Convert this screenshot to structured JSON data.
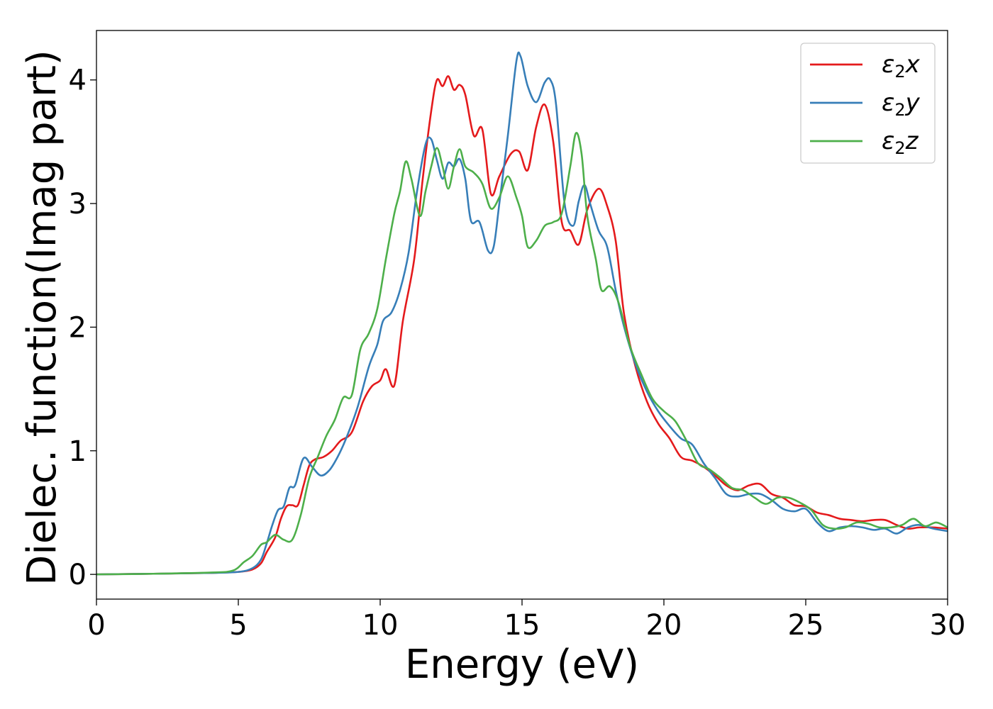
{
  "chart_data": {
    "type": "line",
    "title": "",
    "xlabel": "Energy (eV)",
    "ylabel": "Dielec. function(Imag part)",
    "xlim": [
      0,
      30
    ],
    "ylim": [
      -0.2,
      4.4
    ],
    "x_ticks": [
      "0",
      "5",
      "10",
      "15",
      "20",
      "25",
      "30"
    ],
    "y_ticks": [
      "0",
      "1",
      "2",
      "3",
      "4"
    ],
    "grid": false,
    "legend_position": "top-right",
    "series": [
      {
        "name": "ε₂x",
        "legend_base": "ε",
        "legend_sub": "2",
        "legend_suffix": "x",
        "color": "#e41a1c",
        "points": [
          [
            0,
            0
          ],
          [
            2,
            0.005
          ],
          [
            4,
            0.012
          ],
          [
            5,
            0.02
          ],
          [
            5.5,
            0.04
          ],
          [
            5.8,
            0.09
          ],
          [
            6.0,
            0.18
          ],
          [
            6.3,
            0.3
          ],
          [
            6.5,
            0.45
          ],
          [
            6.7,
            0.55
          ],
          [
            6.9,
            0.56
          ],
          [
            7.1,
            0.56
          ],
          [
            7.3,
            0.72
          ],
          [
            7.5,
            0.88
          ],
          [
            7.7,
            0.93
          ],
          [
            8.0,
            0.95
          ],
          [
            8.3,
            1.0
          ],
          [
            8.6,
            1.08
          ],
          [
            9.0,
            1.15
          ],
          [
            9.4,
            1.4
          ],
          [
            9.7,
            1.52
          ],
          [
            10.0,
            1.57
          ],
          [
            10.2,
            1.66
          ],
          [
            10.5,
            1.53
          ],
          [
            10.8,
            2.05
          ],
          [
            11.2,
            2.55
          ],
          [
            11.5,
            3.2
          ],
          [
            11.8,
            3.75
          ],
          [
            12.0,
            4.0
          ],
          [
            12.2,
            3.95
          ],
          [
            12.4,
            4.03
          ],
          [
            12.6,
            3.92
          ],
          [
            12.8,
            3.96
          ],
          [
            13.0,
            3.88
          ],
          [
            13.3,
            3.55
          ],
          [
            13.6,
            3.6
          ],
          [
            13.9,
            3.08
          ],
          [
            14.2,
            3.22
          ],
          [
            14.6,
            3.4
          ],
          [
            14.9,
            3.42
          ],
          [
            15.2,
            3.27
          ],
          [
            15.5,
            3.62
          ],
          [
            15.8,
            3.8
          ],
          [
            16.1,
            3.5
          ],
          [
            16.4,
            2.85
          ],
          [
            16.7,
            2.78
          ],
          [
            17.0,
            2.67
          ],
          [
            17.3,
            2.95
          ],
          [
            17.7,
            3.12
          ],
          [
            18.0,
            2.98
          ],
          [
            18.3,
            2.7
          ],
          [
            18.6,
            2.1
          ],
          [
            19.0,
            1.68
          ],
          [
            19.4,
            1.4
          ],
          [
            19.8,
            1.22
          ],
          [
            20.2,
            1.1
          ],
          [
            20.6,
            0.95
          ],
          [
            21.0,
            0.92
          ],
          [
            21.4,
            0.87
          ],
          [
            21.8,
            0.8
          ],
          [
            22.2,
            0.72
          ],
          [
            22.6,
            0.68
          ],
          [
            23.0,
            0.72
          ],
          [
            23.4,
            0.73
          ],
          [
            23.8,
            0.65
          ],
          [
            24.2,
            0.62
          ],
          [
            24.6,
            0.56
          ],
          [
            25.0,
            0.55
          ],
          [
            25.4,
            0.5
          ],
          [
            25.8,
            0.48
          ],
          [
            26.2,
            0.45
          ],
          [
            26.6,
            0.44
          ],
          [
            27.0,
            0.43
          ],
          [
            27.4,
            0.44
          ],
          [
            27.8,
            0.44
          ],
          [
            28.2,
            0.4
          ],
          [
            28.6,
            0.37
          ],
          [
            29.0,
            0.38
          ],
          [
            29.5,
            0.38
          ],
          [
            30.0,
            0.37
          ]
        ]
      },
      {
        "name": "ε₂y",
        "legend_base": "ε",
        "legend_sub": "2",
        "legend_suffix": "y",
        "color": "#377eb8",
        "points": [
          [
            0,
            0
          ],
          [
            2,
            0.005
          ],
          [
            4,
            0.012
          ],
          [
            5,
            0.02
          ],
          [
            5.5,
            0.05
          ],
          [
            5.8,
            0.12
          ],
          [
            6.0,
            0.25
          ],
          [
            6.2,
            0.4
          ],
          [
            6.4,
            0.52
          ],
          [
            6.6,
            0.55
          ],
          [
            6.8,
            0.7
          ],
          [
            7.0,
            0.72
          ],
          [
            7.3,
            0.94
          ],
          [
            7.6,
            0.87
          ],
          [
            7.9,
            0.8
          ],
          [
            8.2,
            0.84
          ],
          [
            8.5,
            0.95
          ],
          [
            8.8,
            1.1
          ],
          [
            9.2,
            1.35
          ],
          [
            9.6,
            1.68
          ],
          [
            9.9,
            1.86
          ],
          [
            10.1,
            2.05
          ],
          [
            10.4,
            2.12
          ],
          [
            10.7,
            2.3
          ],
          [
            11.0,
            2.6
          ],
          [
            11.3,
            3.1
          ],
          [
            11.6,
            3.48
          ],
          [
            11.8,
            3.52
          ],
          [
            12.0,
            3.35
          ],
          [
            12.2,
            3.2
          ],
          [
            12.4,
            3.33
          ],
          [
            12.6,
            3.3
          ],
          [
            12.8,
            3.36
          ],
          [
            13.0,
            3.2
          ],
          [
            13.2,
            2.86
          ],
          [
            13.5,
            2.85
          ],
          [
            13.8,
            2.62
          ],
          [
            14.0,
            2.65
          ],
          [
            14.2,
            3.0
          ],
          [
            14.5,
            3.55
          ],
          [
            14.8,
            4.15
          ],
          [
            14.95,
            4.19
          ],
          [
            15.2,
            3.95
          ],
          [
            15.5,
            3.82
          ],
          [
            15.8,
            3.98
          ],
          [
            16.0,
            4.0
          ],
          [
            16.2,
            3.8
          ],
          [
            16.5,
            3.0
          ],
          [
            16.8,
            2.82
          ],
          [
            17.0,
            3.02
          ],
          [
            17.2,
            3.15
          ],
          [
            17.4,
            3.0
          ],
          [
            17.7,
            2.78
          ],
          [
            18.0,
            2.65
          ],
          [
            18.3,
            2.3
          ],
          [
            18.6,
            2.0
          ],
          [
            19.0,
            1.7
          ],
          [
            19.4,
            1.48
          ],
          [
            19.8,
            1.32
          ],
          [
            20.2,
            1.2
          ],
          [
            20.6,
            1.1
          ],
          [
            21.0,
            1.05
          ],
          [
            21.4,
            0.9
          ],
          [
            21.8,
            0.78
          ],
          [
            22.2,
            0.65
          ],
          [
            22.6,
            0.63
          ],
          [
            23.0,
            0.65
          ],
          [
            23.4,
            0.65
          ],
          [
            23.8,
            0.6
          ],
          [
            24.2,
            0.53
          ],
          [
            24.6,
            0.51
          ],
          [
            25.0,
            0.53
          ],
          [
            25.4,
            0.42
          ],
          [
            25.8,
            0.35
          ],
          [
            26.2,
            0.38
          ],
          [
            26.6,
            0.39
          ],
          [
            27.0,
            0.38
          ],
          [
            27.4,
            0.36
          ],
          [
            27.8,
            0.37
          ],
          [
            28.2,
            0.33
          ],
          [
            28.6,
            0.38
          ],
          [
            29.0,
            0.4
          ],
          [
            29.5,
            0.37
          ],
          [
            30.0,
            0.35
          ]
        ]
      },
      {
        "name": "ε₂z",
        "legend_base": "ε",
        "legend_sub": "2",
        "legend_suffix": "z",
        "color": "#4daf4a",
        "points": [
          [
            0,
            0
          ],
          [
            2,
            0.005
          ],
          [
            4,
            0.015
          ],
          [
            4.8,
            0.03
          ],
          [
            5.2,
            0.1
          ],
          [
            5.5,
            0.15
          ],
          [
            5.8,
            0.24
          ],
          [
            6.0,
            0.26
          ],
          [
            6.3,
            0.32
          ],
          [
            6.6,
            0.28
          ],
          [
            6.9,
            0.28
          ],
          [
            7.2,
            0.48
          ],
          [
            7.5,
            0.78
          ],
          [
            7.8,
            0.95
          ],
          [
            8.1,
            1.12
          ],
          [
            8.4,
            1.25
          ],
          [
            8.7,
            1.43
          ],
          [
            9.0,
            1.45
          ],
          [
            9.3,
            1.82
          ],
          [
            9.6,
            1.95
          ],
          [
            9.9,
            2.15
          ],
          [
            10.2,
            2.55
          ],
          [
            10.5,
            2.92
          ],
          [
            10.7,
            3.1
          ],
          [
            10.9,
            3.34
          ],
          [
            11.1,
            3.2
          ],
          [
            11.4,
            2.9
          ],
          [
            11.6,
            3.1
          ],
          [
            11.8,
            3.3
          ],
          [
            12.0,
            3.45
          ],
          [
            12.2,
            3.3
          ],
          [
            12.4,
            3.12
          ],
          [
            12.6,
            3.3
          ],
          [
            12.8,
            3.44
          ],
          [
            13.0,
            3.3
          ],
          [
            13.3,
            3.25
          ],
          [
            13.6,
            3.16
          ],
          [
            13.9,
            2.96
          ],
          [
            14.2,
            3.05
          ],
          [
            14.5,
            3.22
          ],
          [
            14.8,
            3.05
          ],
          [
            15.0,
            2.9
          ],
          [
            15.2,
            2.65
          ],
          [
            15.5,
            2.7
          ],
          [
            15.8,
            2.82
          ],
          [
            16.1,
            2.85
          ],
          [
            16.4,
            2.92
          ],
          [
            16.7,
            3.3
          ],
          [
            16.9,
            3.57
          ],
          [
            17.1,
            3.4
          ],
          [
            17.3,
            2.9
          ],
          [
            17.6,
            2.55
          ],
          [
            17.8,
            2.3
          ],
          [
            18.1,
            2.33
          ],
          [
            18.4,
            2.2
          ],
          [
            18.8,
            1.85
          ],
          [
            19.2,
            1.62
          ],
          [
            19.6,
            1.42
          ],
          [
            20.0,
            1.32
          ],
          [
            20.4,
            1.24
          ],
          [
            20.8,
            1.08
          ],
          [
            21.2,
            0.9
          ],
          [
            21.6,
            0.85
          ],
          [
            22.0,
            0.78
          ],
          [
            22.4,
            0.7
          ],
          [
            22.8,
            0.68
          ],
          [
            23.2,
            0.62
          ],
          [
            23.6,
            0.57
          ],
          [
            24.0,
            0.62
          ],
          [
            24.4,
            0.62
          ],
          [
            24.8,
            0.58
          ],
          [
            25.2,
            0.52
          ],
          [
            25.6,
            0.4
          ],
          [
            26.0,
            0.37
          ],
          [
            26.4,
            0.38
          ],
          [
            26.8,
            0.42
          ],
          [
            27.2,
            0.41
          ],
          [
            27.6,
            0.38
          ],
          [
            28.0,
            0.38
          ],
          [
            28.4,
            0.4
          ],
          [
            28.8,
            0.45
          ],
          [
            29.2,
            0.39
          ],
          [
            29.6,
            0.42
          ],
          [
            30.0,
            0.38
          ]
        ]
      }
    ]
  }
}
